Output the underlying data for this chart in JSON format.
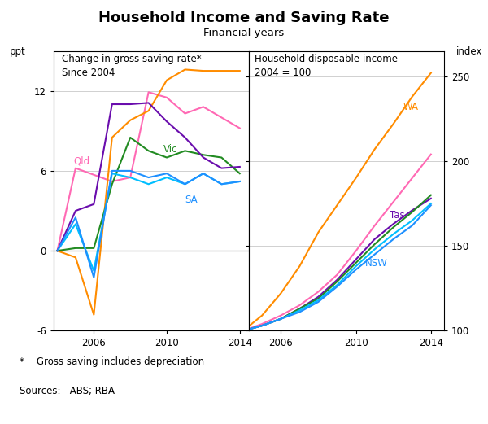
{
  "title": "Household Income and Saving Rate",
  "subtitle": "Financial years",
  "left_panel_title": "Change in gross saving rate*\nSince 2004",
  "right_panel_title": "Household disposable income\n2004 = 100",
  "left_ylabel": "ppt",
  "right_ylabel": "index",
  "footnote": "*    Gross saving includes depreciation",
  "sources": "Sources:   ABS; RBA",
  "left_years": [
    2004,
    2005,
    2006,
    2007,
    2008,
    2009,
    2010,
    2011,
    2012,
    2013,
    2014
  ],
  "left_series": {
    "Qld": {
      "color": "#FF69B4",
      "values": [
        0,
        6.2,
        5.7,
        5.2,
        5.5,
        11.9,
        11.5,
        10.3,
        10.8,
        10.0,
        9.2
      ]
    },
    "WA": {
      "color": "#FF8C00",
      "values": [
        0,
        -0.5,
        -4.8,
        8.5,
        9.8,
        10.5,
        12.8,
        13.6,
        13.5,
        13.5,
        13.5
      ]
    },
    "Vic": {
      "color": "#228B22",
      "values": [
        0,
        0.2,
        0.2,
        5.0,
        8.5,
        7.5,
        7.0,
        7.5,
        7.2,
        7.0,
        5.8
      ]
    },
    "NSW": {
      "color": "#00BFFF",
      "values": [
        0,
        2.0,
        -1.5,
        5.8,
        5.5,
        5.0,
        5.5,
        5.0,
        5.8,
        5.0,
        5.2
      ]
    },
    "Tas": {
      "color": "#6A0DAD",
      "values": [
        0,
        3.0,
        3.5,
        11.0,
        11.0,
        11.1,
        9.7,
        8.5,
        7.0,
        6.2,
        6.3
      ]
    },
    "SA": {
      "color": "#1E90FF",
      "values": [
        0,
        2.5,
        -2.0,
        6.0,
        6.0,
        5.5,
        5.8,
        5.0,
        5.8,
        5.0,
        5.2
      ]
    }
  },
  "right_years": [
    2004,
    2005,
    2006,
    2007,
    2008,
    2009,
    2010,
    2011,
    2012,
    2013,
    2014
  ],
  "right_series": {
    "WA": {
      "color": "#FF8C00",
      "values": [
        100,
        109,
        122,
        138,
        158,
        174,
        190,
        207,
        222,
        238,
        252
      ]
    },
    "Qld": {
      "color": "#FF69B4",
      "values": [
        100,
        104,
        109,
        115,
        123,
        133,
        147,
        162,
        176,
        190,
        204
      ]
    },
    "Tas": {
      "color": "#6A0DAD",
      "values": [
        100,
        103,
        107,
        113,
        120,
        130,
        142,
        154,
        163,
        171,
        178
      ]
    },
    "Vic": {
      "color": "#228B22",
      "values": [
        100,
        103,
        107,
        113,
        119,
        129,
        140,
        151,
        161,
        170,
        180
      ]
    },
    "SA": {
      "color": "#00BFFF",
      "values": [
        100,
        103,
        107,
        112,
        118,
        127,
        138,
        148,
        157,
        165,
        175
      ]
    },
    "NSW": {
      "color": "#1E90FF",
      "values": [
        100,
        103,
        107,
        111,
        117,
        126,
        136,
        145,
        154,
        162,
        174
      ]
    }
  },
  "left_xlim": [
    2003.8,
    2014.5
  ],
  "left_ylim": [
    -6,
    15
  ],
  "left_yticks": [
    -6,
    0,
    6,
    12
  ],
  "right_xlim": [
    2004.3,
    2014.7
  ],
  "right_ylim": [
    100,
    265
  ],
  "right_yticks": [
    100,
    150,
    200,
    250
  ],
  "background_color": "#ffffff",
  "grid_color": "#d0d0d0"
}
